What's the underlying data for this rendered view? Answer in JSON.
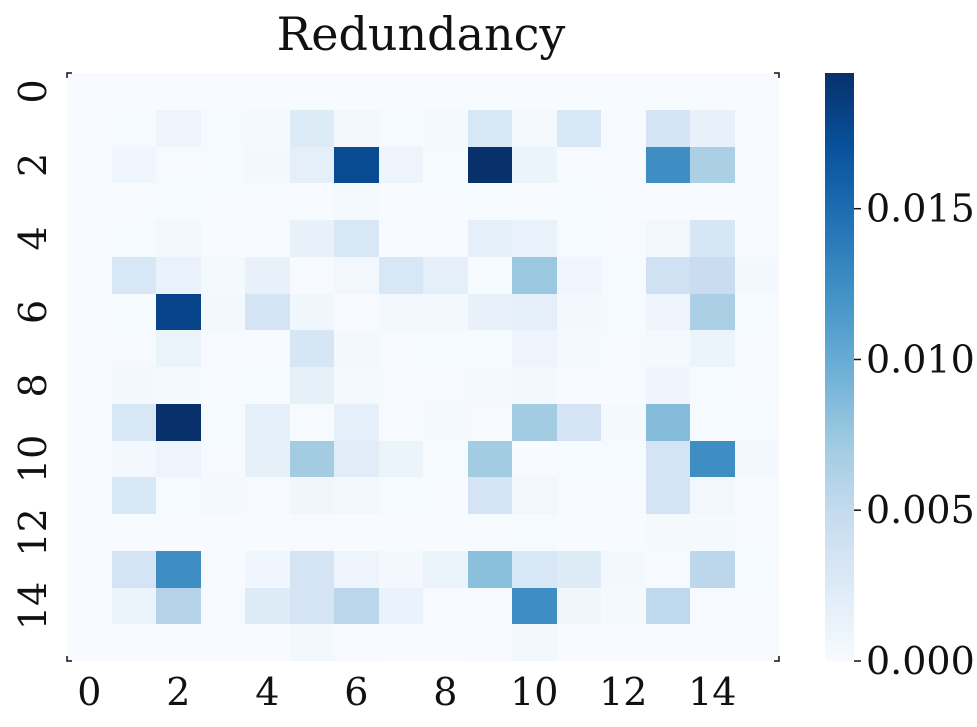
{
  "chart_data": {
    "type": "heatmap",
    "title": "Redundancy",
    "xlabel": "",
    "ylabel": "",
    "x_tick_labels": [
      "0",
      "2",
      "4",
      "6",
      "8",
      "10",
      "12",
      "14"
    ],
    "y_tick_labels": [
      "0",
      "2",
      "4",
      "6",
      "8",
      "10",
      "12",
      "14"
    ],
    "colorbar": {
      "tick_labels": [
        "0.000",
        "0.005",
        "0.010",
        "0.015"
      ],
      "ticks": [
        0.0,
        0.005,
        0.01,
        0.015
      ],
      "range": [
        0,
        0.0195
      ]
    },
    "colormap": "Blues",
    "colors": {
      "low": "#f7fbff",
      "high": "#08306b"
    },
    "rows": 16,
    "cols": 16,
    "values": [
      [
        0.0,
        0.0,
        0.0,
        0.0,
        0.0,
        0.0,
        0.0,
        0.0,
        0.0,
        0.0,
        0.0,
        0.0,
        0.0,
        0.0,
        0.0,
        0.0
      ],
      [
        0.0,
        0.0002,
        0.001,
        0.0002,
        0.0003,
        0.0025,
        0.0004,
        0.0002,
        0.0003,
        0.003,
        0.0003,
        0.003,
        0.0001,
        0.0035,
        0.0015,
        0.0001
      ],
      [
        0.0,
        0.0007,
        0.0001,
        0.0002,
        0.0005,
        0.0018,
        0.0175,
        0.001,
        0.0002,
        0.0195,
        0.0012,
        0.0001,
        0.0001,
        0.0125,
        0.0065,
        0.0
      ],
      [
        0.0,
        0.0,
        0.0002,
        0.0,
        0.0,
        0.0,
        0.0003,
        0.0,
        0.0,
        0.0002,
        0.0,
        0.0002,
        0.0,
        0.0,
        0.0,
        0.0
      ],
      [
        0.0,
        0.0002,
        0.0006,
        0.0,
        0.0001,
        0.0015,
        0.003,
        0.0,
        0.0001,
        0.0018,
        0.0014,
        0.0002,
        0.0001,
        0.0006,
        0.0032,
        0.0
      ],
      [
        0.0,
        0.003,
        0.0014,
        0.0003,
        0.0015,
        0.0001,
        0.0006,
        0.003,
        0.0018,
        0.0002,
        0.0075,
        0.0007,
        0.0002,
        0.004,
        0.0045,
        0.0004
      ],
      [
        0.0,
        0.0002,
        0.018,
        0.0005,
        0.0035,
        0.0008,
        0.0001,
        0.0004,
        0.0004,
        0.0015,
        0.0018,
        0.0004,
        0.0002,
        0.001,
        0.0065,
        0.0002
      ],
      [
        0.0,
        0.0001,
        0.0012,
        0.0001,
        0.0001,
        0.0032,
        0.0004,
        0.0001,
        0.0002,
        0.0002,
        0.001,
        0.0003,
        0.0001,
        0.0003,
        0.0012,
        0.0
      ],
      [
        0.0,
        0.0004,
        0.0003,
        0.0,
        0.0002,
        0.0017,
        0.0003,
        0.0001,
        0.0001,
        0.0003,
        0.0004,
        0.0001,
        0.0,
        0.0009,
        0.0002,
        0.0
      ],
      [
        0.0,
        0.003,
        0.0195,
        0.0002,
        0.0018,
        0.0001,
        0.0018,
        0.0001,
        0.0003,
        0.0001,
        0.007,
        0.0035,
        0.0003,
        0.0085,
        0.0002,
        0.0002
      ],
      [
        0.0,
        0.0004,
        0.001,
        0.0001,
        0.0017,
        0.007,
        0.0022,
        0.0012,
        0.0002,
        0.007,
        0.0,
        0.0002,
        0.0002,
        0.0035,
        0.0125,
        0.0005
      ],
      [
        0.0,
        0.003,
        0.0002,
        0.0003,
        0.0001,
        0.0008,
        0.0004,
        0.0002,
        0.0001,
        0.0035,
        0.0006,
        0.0001,
        0.0001,
        0.0035,
        0.0006,
        0.0
      ],
      [
        0.0,
        0.0,
        0.0,
        0.0,
        0.0,
        0.0001,
        0.0,
        0.0,
        0.0,
        0.0001,
        0.0002,
        0.0,
        0.0,
        0.0003,
        0.0003,
        0.0
      ],
      [
        0.0,
        0.0035,
        0.0125,
        0.0001,
        0.0007,
        0.0035,
        0.001,
        0.0004,
        0.0012,
        0.0082,
        0.003,
        0.0025,
        0.0004,
        0.0001,
        0.0055,
        0.0002
      ],
      [
        0.0,
        0.0012,
        0.006,
        0.0001,
        0.0025,
        0.0035,
        0.0055,
        0.0013,
        0.0001,
        0.0001,
        0.0125,
        0.0008,
        0.0003,
        0.0052,
        0.0001,
        0.0
      ],
      [
        0.0,
        0.0,
        0.0,
        0.0,
        0.0,
        0.0004,
        0.0001,
        0.0,
        0.0,
        0.0001,
        0.0004,
        0.0,
        0.0,
        0.0,
        0.0,
        0.0
      ]
    ]
  }
}
